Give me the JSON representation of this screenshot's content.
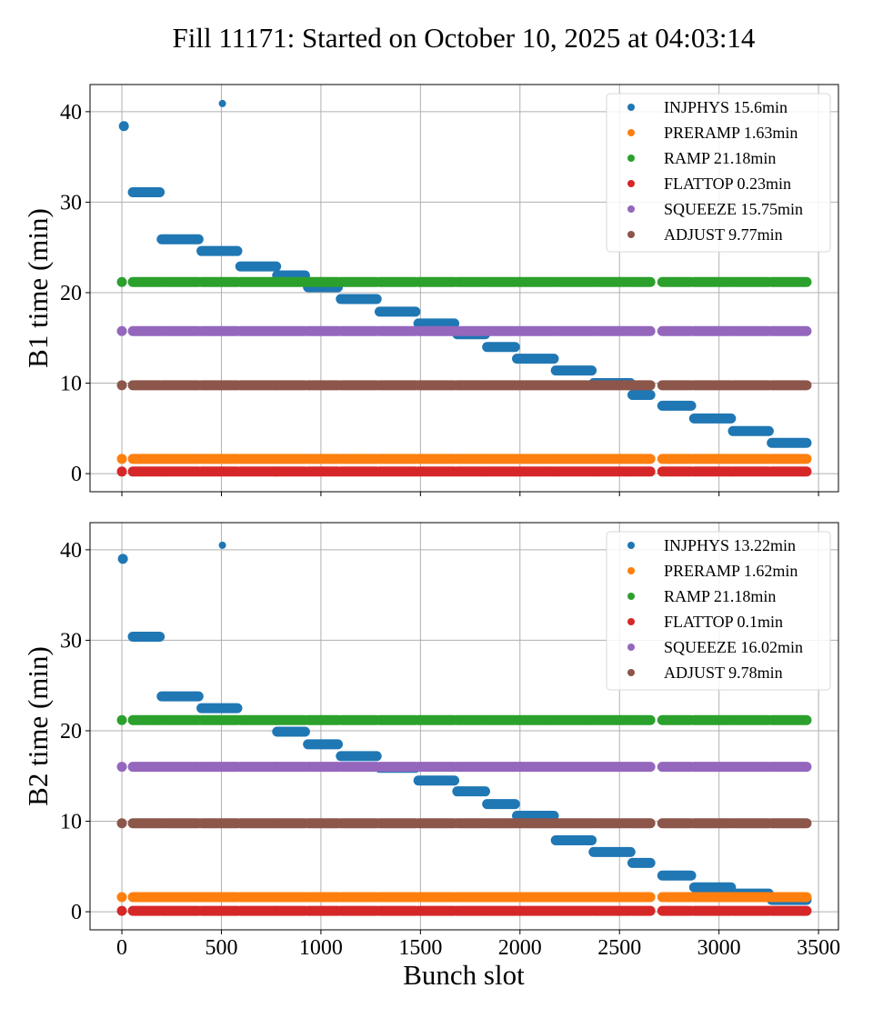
{
  "chart_data": {
    "type": "scatter",
    "title": "Fill 11171: Started on October 10, 2025 at 04:03:14",
    "shared_xlabel": "Bunch slot",
    "xlim": [
      -160,
      3600
    ],
    "xticks": [
      0,
      500,
      1000,
      1500,
      2000,
      2500,
      3000,
      3500
    ],
    "grid": true,
    "colors": {
      "INJPHYS": "#1f77b4",
      "PRERAMP": "#ff7f0e",
      "RAMP": "#2ca02c",
      "FLATTOP": "#d62728",
      "SQUEEZE": "#9467bd",
      "ADJUST": "#8c564b"
    },
    "filled_ranges": [
      [
        0,
        5
      ],
      [
        55,
        190
      ],
      [
        200,
        385
      ],
      [
        400,
        580
      ],
      [
        595,
        775
      ],
      [
        780,
        920
      ],
      [
        935,
        1085
      ],
      [
        1100,
        1280
      ],
      [
        1295,
        1475
      ],
      [
        1490,
        1670
      ],
      [
        1685,
        1825
      ],
      [
        1835,
        1975
      ],
      [
        1985,
        2170
      ],
      [
        2180,
        2360
      ],
      [
        2370,
        2555
      ],
      [
        2565,
        2655
      ],
      [
        2715,
        2860
      ],
      [
        2875,
        3060
      ],
      [
        3070,
        3250
      ],
      [
        3265,
        3440
      ]
    ],
    "panels": [
      {
        "ylabel": "B1 time (min)",
        "ylim": [
          -2,
          43
        ],
        "yticks": [
          0,
          10,
          20,
          30,
          40
        ],
        "legend_position": "top-right",
        "show_xtick_labels": false,
        "series": [
          {
            "name": "INJPHYS",
            "legend": "INJPHYS 15.6min",
            "singles": [
              [
                10,
                38.4
              ],
              [
                505,
                40.9
              ]
            ],
            "segments": [
              [
                55,
                190,
                31.1
              ],
              [
                200,
                385,
                25.9
              ],
              [
                400,
                580,
                24.6
              ],
              [
                595,
                775,
                22.9
              ],
              [
                780,
                920,
                21.9
              ],
              [
                935,
                1085,
                20.6
              ],
              [
                1100,
                1280,
                19.3
              ],
              [
                1295,
                1475,
                17.9
              ],
              [
                1490,
                1670,
                16.6
              ],
              [
                1685,
                1825,
                15.4
              ],
              [
                1835,
                1975,
                14.0
              ],
              [
                1985,
                2170,
                12.7
              ],
              [
                2180,
                2360,
                11.4
              ],
              [
                2370,
                2555,
                10.0
              ],
              [
                2565,
                2655,
                8.7
              ],
              [
                2715,
                2860,
                7.5
              ],
              [
                2875,
                3060,
                6.1
              ],
              [
                3070,
                3250,
                4.7
              ],
              [
                3265,
                3440,
                3.4
              ]
            ]
          },
          {
            "name": "PRERAMP",
            "legend": "PRERAMP 1.63min",
            "constant": 1.63
          },
          {
            "name": "RAMP",
            "legend": "RAMP 21.18min",
            "constant": 21.18
          },
          {
            "name": "FLATTOP",
            "legend": "FLATTOP 0.23min",
            "constant": 0.23
          },
          {
            "name": "SQUEEZE",
            "legend": "SQUEEZE 15.75min",
            "constant": 15.75
          },
          {
            "name": "ADJUST",
            "legend": "ADJUST 9.77min",
            "constant": 9.77
          }
        ]
      },
      {
        "ylabel": "B2 time (min)",
        "ylim": [
          -2,
          43
        ],
        "yticks": [
          0,
          10,
          20,
          30,
          40
        ],
        "legend_position": "top-right",
        "show_xtick_labels": true,
        "series": [
          {
            "name": "INJPHYS",
            "legend": "INJPHYS 13.22min",
            "singles": [
              [
                5,
                39.0
              ],
              [
                505,
                40.5
              ]
            ],
            "segments": [
              [
                55,
                190,
                30.4
              ],
              [
                200,
                385,
                23.8
              ],
              [
                400,
                580,
                22.5
              ],
              [
                780,
                920,
                19.9
              ],
              [
                935,
                1085,
                18.5
              ],
              [
                1100,
                1280,
                17.2
              ],
              [
                1295,
                1475,
                15.9
              ],
              [
                1490,
                1670,
                14.5
              ],
              [
                1685,
                1825,
                13.3
              ],
              [
                1835,
                1975,
                11.9
              ],
              [
                1985,
                2170,
                10.6
              ],
              [
                2180,
                2360,
                7.9
              ],
              [
                2370,
                2555,
                6.6
              ],
              [
                2565,
                2655,
                5.4
              ],
              [
                2715,
                2860,
                4.0
              ],
              [
                2875,
                3060,
                2.7
              ],
              [
                3070,
                3250,
                2.0
              ],
              [
                3265,
                3440,
                1.3
              ]
            ]
          },
          {
            "name": "PRERAMP",
            "legend": "PRERAMP 1.62min",
            "constant": 1.62
          },
          {
            "name": "RAMP",
            "legend": "RAMP 21.18min",
            "constant": 21.18
          },
          {
            "name": "FLATTOP",
            "legend": "FLATTOP 0.1min",
            "constant": 0.1
          },
          {
            "name": "SQUEEZE",
            "legend": "SQUEEZE 16.02min",
            "constant": 16.02
          },
          {
            "name": "ADJUST",
            "legend": "ADJUST 9.78min",
            "constant": 9.78
          }
        ]
      }
    ]
  }
}
